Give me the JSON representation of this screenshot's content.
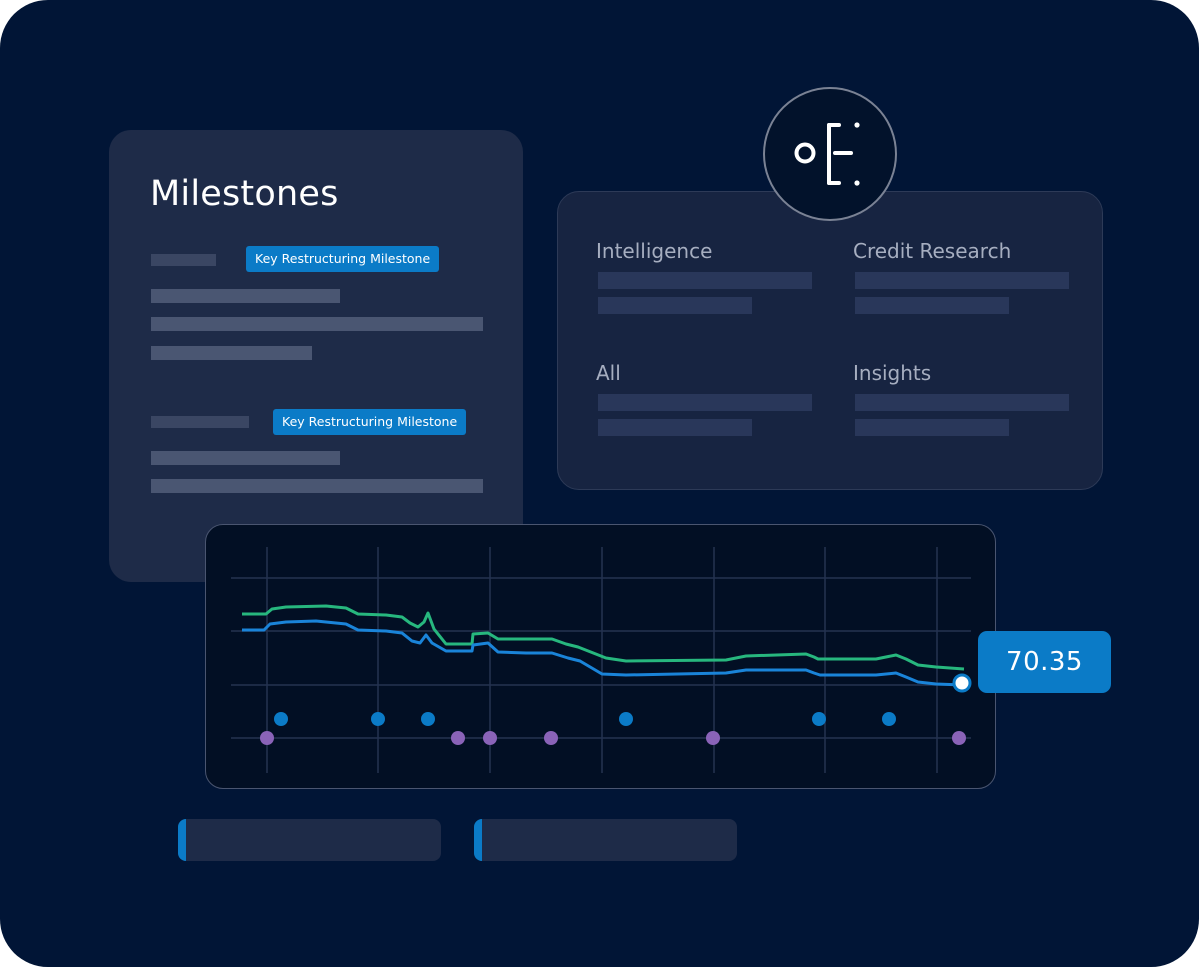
{
  "milestones": {
    "title": "Milestones",
    "badges": [
      "Key Restructuring Milestone",
      "Key Restructuring Milestone"
    ]
  },
  "research": {
    "categories": [
      "Intelligence",
      "Credit Research",
      "All",
      "Insights"
    ]
  },
  "logo": {
    "icon": "document-tree-icon"
  },
  "chart": {
    "current_value": "70.35"
  },
  "chart_data": {
    "type": "line",
    "title": "",
    "xlabel": "",
    "ylabel": "",
    "series": [
      {
        "values": [
          64.2,
          64.2,
          63.8,
          63.7,
          63.7,
          63.5,
          63.3,
          63.1,
          62.9,
          62.7,
          62.6,
          62.6,
          62.4,
          62.3,
          62.1,
          61.5,
          61.2,
          61.0,
          61.0,
          60.8,
          60.7,
          60.7,
          60.6,
          60.5,
          60.4,
          60.2,
          60.0,
          60.0,
          59.9,
          59.9,
          59.8,
          59.7,
          59.6,
          59.5,
          59.3,
          59.2,
          59.1
        ]
      },
      {
        "values": [
          61.3,
          61.3,
          60.8,
          60.7,
          60.6,
          60.5,
          60.3,
          60.1,
          59.9,
          59.7,
          59.5,
          59.4,
          59.3,
          59.1,
          58.9,
          58.4,
          58.1,
          57.9,
          57.8,
          57.6,
          57.5,
          57.5,
          57.4,
          57.3,
          57.2,
          57.0,
          56.9,
          56.8,
          56.7,
          56.7,
          56.6,
          56.5,
          56.4,
          56.3,
          56.2,
          56.0,
          55.7
        ]
      }
    ],
    "events_blue": [
      5,
      16,
      20,
      32,
      45,
      50,
      61
    ],
    "events_purple": [
      2,
      22,
      25,
      29,
      35,
      42,
      55
    ],
    "grid": true,
    "line_colors": [
      "#27b77e",
      "#1a84d9"
    ],
    "event_colors": [
      "#0b7bc7",
      "#8a63b8"
    ]
  },
  "colors": {
    "background": "#011536",
    "card": "#1e2b48",
    "accent": "#0b7bc7",
    "green_line": "#27b77e",
    "blue_line": "#1a84d9",
    "purple": "#8a63b8"
  }
}
